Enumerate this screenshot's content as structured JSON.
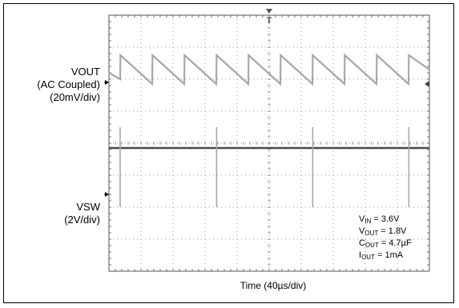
{
  "chart_data": {
    "type": "line",
    "xlabel": "Time (40µs/div)",
    "x_divisions": 10,
    "y_divisions": 8,
    "channels": [
      {
        "name": "VOUT",
        "label_lines": [
          "VOUT",
          "(AC Coupled)",
          "(20mV/div)"
        ],
        "coupling": "AC Coupled",
        "scale": "20mV/div",
        "color": "#a8a8a8",
        "description": "sawtooth ripple: instant rise then linear decay",
        "x_div": [
          0.0,
          0.35,
          0.36,
          1.35,
          1.36,
          2.35,
          2.36,
          3.35,
          3.36,
          4.35,
          4.36,
          5.35,
          5.36,
          6.35,
          6.36,
          7.35,
          7.36,
          8.35,
          8.36,
          9.35,
          9.36,
          10.0
        ],
        "y_div": [
          6.2,
          6.0,
          6.75,
          5.85,
          6.75,
          5.85,
          6.75,
          5.85,
          6.75,
          5.85,
          6.75,
          5.85,
          6.75,
          5.85,
          6.75,
          5.85,
          6.75,
          5.85,
          6.75,
          5.85,
          6.75,
          6.3
        ]
      },
      {
        "name": "VSW",
        "label_lines": [
          "VSW",
          "(2V/div)"
        ],
        "scale": "2V/div",
        "color": "#a8a8a8",
        "description": "switch node: flat with narrow pulses",
        "baseline_div": 3.85,
        "pulse_top_div": 4.5,
        "pulse_bottom_div": 2.0,
        "pulse_x_div": [
          0.35,
          3.36,
          6.36,
          9.36
        ]
      }
    ],
    "trigger_marker": "T",
    "conditions": [
      {
        "sym": "V",
        "sub": "IN",
        "val": " = 3.6V"
      },
      {
        "sym": "V",
        "sub": "OUT",
        "val": " = 1.8V"
      },
      {
        "sym": "C",
        "sub": "OUT",
        "val": " = 4.7µF"
      },
      {
        "sym": "I",
        "sub": "OUT",
        "val": " = 1mA"
      }
    ]
  }
}
